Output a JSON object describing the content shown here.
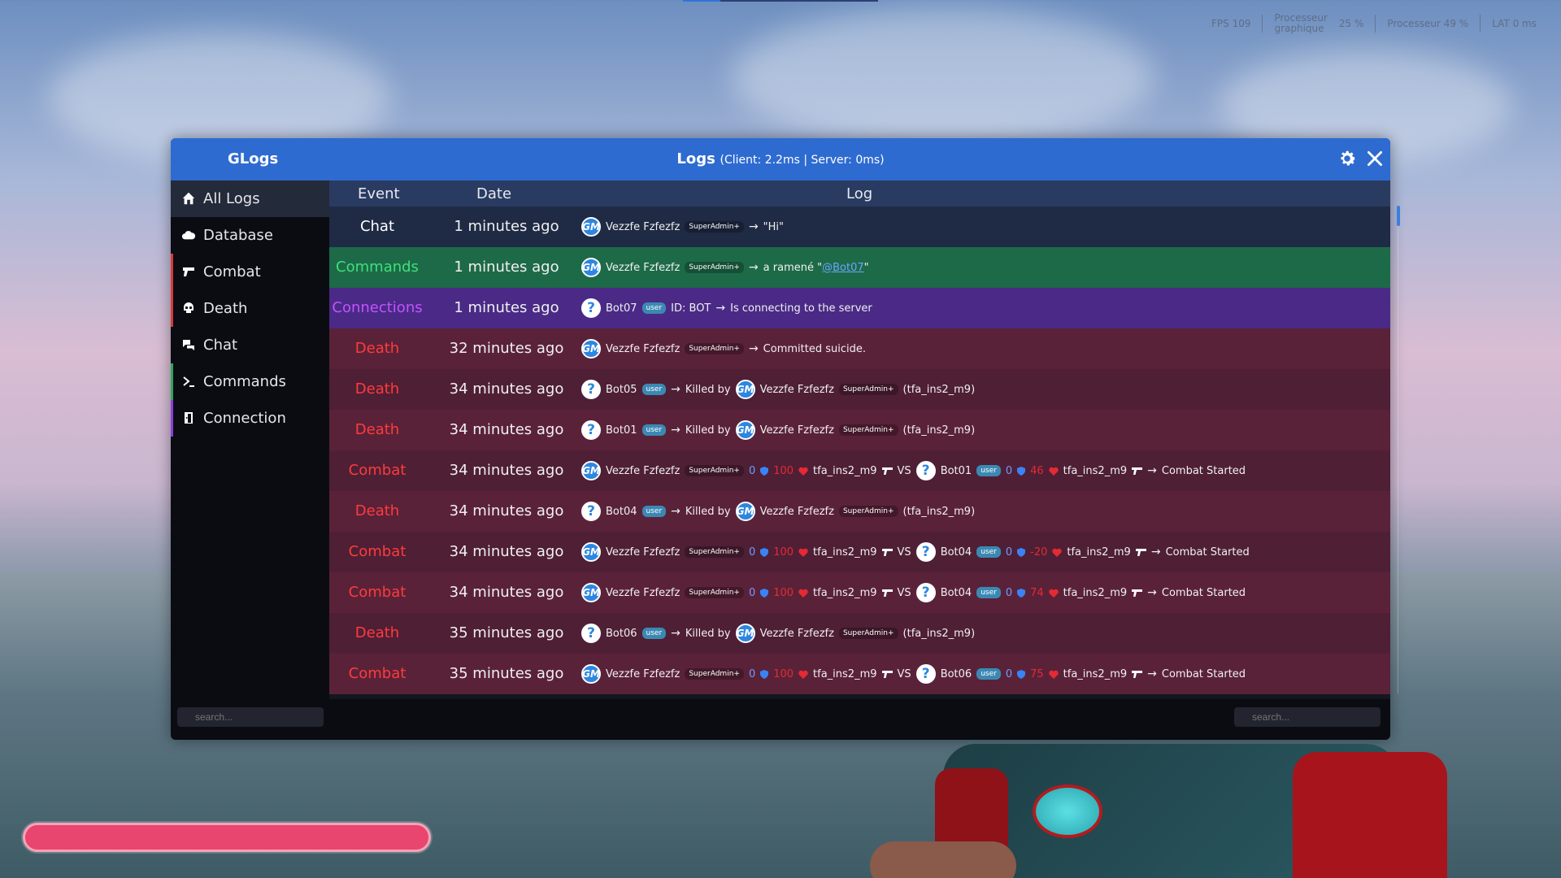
{
  "hud": {
    "fps": "FPS",
    "fps_value": "109",
    "gpu_label_1": "Processeur",
    "gpu_label_2": "graphique",
    "gpu_value": "25 %",
    "cpu_label": "Processeur",
    "cpu_value": "49 %",
    "lat_label": "LAT",
    "lat_value": "0 ms"
  },
  "window": {
    "app_name": "GLogs",
    "title": "Logs",
    "subtitle": "(Client: 2.2ms | Server: 0ms)"
  },
  "sidebar": {
    "items": [
      {
        "label": "All Logs",
        "icon": "home-icon",
        "accent": ""
      },
      {
        "label": "Database",
        "icon": "cloud-icon",
        "accent": ""
      },
      {
        "label": "Combat",
        "icon": "gun-icon",
        "accent": "#d63a3a"
      },
      {
        "label": "Death",
        "icon": "skull-icon",
        "accent": "#d63a3a"
      },
      {
        "label": "Chat",
        "icon": "chat-icon",
        "accent": ""
      },
      {
        "label": "Commands",
        "icon": "terminal-icon",
        "accent": "#2fa65a"
      },
      {
        "label": "Connection",
        "icon": "door-icon",
        "accent": "#8a3fd6"
      }
    ]
  },
  "table": {
    "headers": {
      "event": "Event",
      "date": "Date",
      "log": "Log"
    },
    "rows": [
      {
        "event": "Chat",
        "date": "1 minutes ago",
        "bg": "#1f2a44",
        "ev_color": "#ffffff",
        "p1": "Vezzfe Fzfezfz",
        "p1_type": "gm",
        "p1_badge": "SuperAdmin+",
        "text": "\"Hi\""
      },
      {
        "event": "Commands",
        "date": "1 minutes ago",
        "bg": "#1d6a48",
        "ev_color": "#3ee07a",
        "p1": "Vezzfe Fzfezfz",
        "p1_type": "gm",
        "p1_badge": "SuperAdmin+",
        "text": "a ramené \"",
        "link": "@Bot07",
        "text2": "\""
      },
      {
        "event": "Connections",
        "date": "1 minutes ago",
        "bg": "#4a2a86",
        "ev_color": "#c252ff",
        "p1": "Bot07",
        "p1_type": "q",
        "p1_badge": "user",
        "extra": "ID: BOT",
        "text": "Is connecting to the server"
      },
      {
        "event": "Death",
        "date": "32 minutes ago",
        "bg": "#5a2239",
        "ev_color": "#ff3b3b",
        "p1": "Vezzfe Fzfezfz",
        "p1_type": "gm",
        "p1_badge": "SuperAdmin+",
        "text": "Committed suicide."
      },
      {
        "event": "Death",
        "date": "34 minutes ago",
        "bg": "#4f1f35",
        "ev_color": "#ff3b3b",
        "p1": "Bot05",
        "p1_type": "q",
        "p1_badge": "user",
        "killed_by": "Killed by",
        "p2": "Vezzfe Fzfezfz",
        "p2_type": "gm",
        "p2_badge": "SuperAdmin+",
        "weapon": "(tfa_ins2_m9)"
      },
      {
        "event": "Death",
        "date": "34 minutes ago",
        "bg": "#5a2239",
        "ev_color": "#ff3b3b",
        "p1": "Bot01",
        "p1_type": "q",
        "p1_badge": "user",
        "killed_by": "Killed by",
        "p2": "Vezzfe Fzfezfz",
        "p2_type": "gm",
        "p2_badge": "SuperAdmin+",
        "weapon": "(tfa_ins2_m9)"
      },
      {
        "event": "Combat",
        "date": "34 minutes ago",
        "bg": "#4f1f35",
        "ev_color": "#ff3b3b",
        "p1": "Vezzfe Fzfezfz",
        "p1_type": "gm",
        "p1_badge": "SuperAdmin+",
        "a1": "0",
        "h1": "100",
        "w1": "tfa_ins2_m9",
        "vs": "VS",
        "p2": "Bot01",
        "p2_type": "q",
        "p2_badge": "user",
        "a2": "0",
        "h2": "46",
        "w2": "tfa_ins2_m9",
        "text": "Combat Started"
      },
      {
        "event": "Death",
        "date": "34 minutes ago",
        "bg": "#5a2239",
        "ev_color": "#ff3b3b",
        "p1": "Bot04",
        "p1_type": "q",
        "p1_badge": "user",
        "killed_by": "Killed by",
        "p2": "Vezzfe Fzfezfz",
        "p2_type": "gm",
        "p2_badge": "SuperAdmin+",
        "weapon": "(tfa_ins2_m9)"
      },
      {
        "event": "Combat",
        "date": "34 minutes ago",
        "bg": "#4f1f35",
        "ev_color": "#ff3b3b",
        "p1": "Vezzfe Fzfezfz",
        "p1_type": "gm",
        "p1_badge": "SuperAdmin+",
        "a1": "0",
        "h1": "100",
        "w1": "tfa_ins2_m9",
        "vs": "VS",
        "p2": "Bot04",
        "p2_type": "q",
        "p2_badge": "user",
        "a2": "0",
        "h2": "-20",
        "w2": "tfa_ins2_m9",
        "text": "Combat Started"
      },
      {
        "event": "Combat",
        "date": "34 minutes ago",
        "bg": "#5a2239",
        "ev_color": "#ff3b3b",
        "p1": "Vezzfe Fzfezfz",
        "p1_type": "gm",
        "p1_badge": "SuperAdmin+",
        "a1": "0",
        "h1": "100",
        "w1": "tfa_ins2_m9",
        "vs": "VS",
        "p2": "Bot04",
        "p2_type": "q",
        "p2_badge": "user",
        "a2": "0",
        "h2": "74",
        "w2": "tfa_ins2_m9",
        "text": "Combat Started"
      },
      {
        "event": "Death",
        "date": "35 minutes ago",
        "bg": "#4f1f35",
        "ev_color": "#ff3b3b",
        "p1": "Bot06",
        "p1_type": "q",
        "p1_badge": "user",
        "killed_by": "Killed by",
        "p2": "Vezzfe Fzfezfz",
        "p2_type": "gm",
        "p2_badge": "SuperAdmin+",
        "weapon": "(tfa_ins2_m9)"
      },
      {
        "event": "Combat",
        "date": "35 minutes ago",
        "bg": "#5a2239",
        "ev_color": "#ff3b3b",
        "p1": "Vezzfe Fzfezfz",
        "p1_type": "gm",
        "p1_badge": "SuperAdmin+",
        "a1": "0",
        "h1": "100",
        "w1": "tfa_ins2_m9",
        "vs": "VS",
        "p2": "Bot06",
        "p2_type": "q",
        "p2_badge": "user",
        "a2": "0",
        "h2": "75",
        "w2": "tfa_ins2_m9",
        "text": "Combat Started"
      }
    ]
  },
  "footer": {
    "left_search_placeholder": "search...",
    "right_search_placeholder": "search..."
  },
  "colors": {
    "titlebar": "#2e6bd1",
    "health": "#e8456f"
  }
}
